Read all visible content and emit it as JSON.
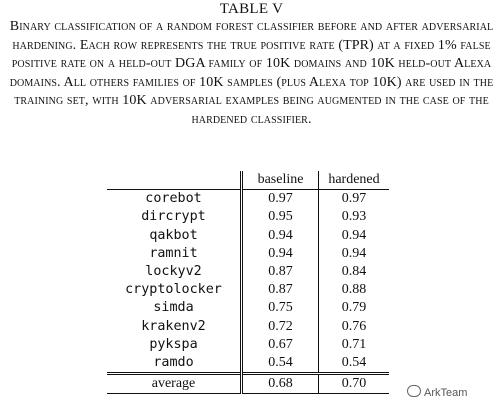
{
  "table_label": "TABLE V",
  "caption": "Binary classification of a random forest classifier before and after adversarial hardening. Each row represents the true positive rate (TPR) at a fixed 1% false positive rate on a held-out DGA family of 10K domains and 10K held-out Alexa domains. All others families of 10K samples (plus Alexa top 10K) are used in the training set, with 10K adversarial examples being augmented in the case of the hardened classifier.",
  "columns": [
    "",
    "baseline",
    "hardened"
  ],
  "rows": [
    {
      "name": "corebot",
      "baseline": "0.97",
      "baseline_bold": true,
      "hardened": "0.97",
      "hardened_bold": true
    },
    {
      "name": "dircrypt",
      "baseline": "0.95",
      "baseline_bold": true,
      "hardened": "0.93",
      "hardened_bold": false
    },
    {
      "name": "qakbot",
      "baseline": "0.94",
      "baseline_bold": true,
      "hardened": "0.94",
      "hardened_bold": true
    },
    {
      "name": "ramnit",
      "baseline": "0.94",
      "baseline_bold": true,
      "hardened": "0.94",
      "hardened_bold": true
    },
    {
      "name": "lockyv2",
      "baseline": "0.87",
      "baseline_bold": true,
      "hardened": "0.84",
      "hardened_bold": false
    },
    {
      "name": "cryptolocker",
      "baseline": "0.87",
      "baseline_bold": false,
      "hardened": "0.88",
      "hardened_bold": true
    },
    {
      "name": "simda",
      "baseline": "0.75",
      "baseline_bold": false,
      "hardened": "0.79",
      "hardened_bold": true
    },
    {
      "name": "krakenv2",
      "baseline": "0.72",
      "baseline_bold": false,
      "hardened": "0.76",
      "hardened_bold": true
    },
    {
      "name": "pykspa",
      "baseline": "0.67",
      "baseline_bold": false,
      "hardened": "0.71",
      "hardened_bold": true
    },
    {
      "name": "ramdo",
      "baseline": "0.54",
      "baseline_bold": true,
      "hardened": "0.54",
      "hardened_bold": true
    }
  ],
  "average": {
    "name": "average",
    "baseline": "0.68",
    "baseline_bold": false,
    "hardened": "0.70",
    "hardened_bold": true
  },
  "watermark": "ArkTeam"
}
